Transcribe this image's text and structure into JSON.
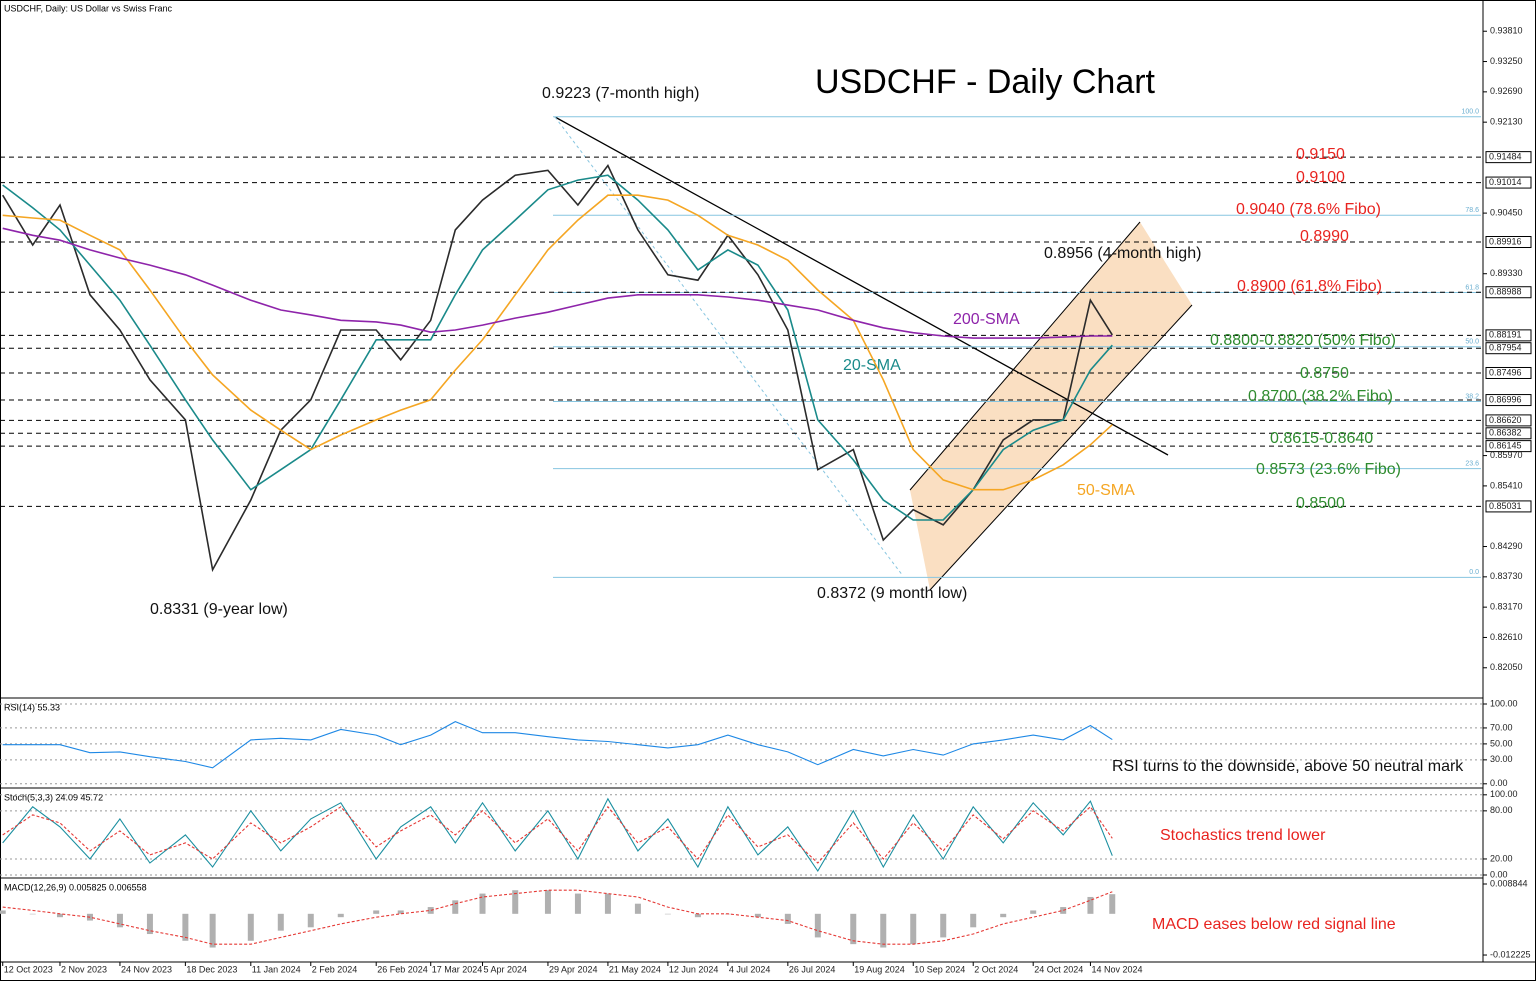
{
  "chart_data": [
    {
      "type": "line",
      "title": "USDCHF - Daily Chart",
      "subtitle": "USDCHF, Daily:  US Dollar vs Swiss Franc",
      "x": [
        "2023-10-12",
        "2023-10-23",
        "2023-11-02",
        "2023-11-13",
        "2023-11-24",
        "2023-12-05",
        "2023-12-18",
        "2023-12-28",
        "2024-01-11",
        "2024-01-22",
        "2024-02-02",
        "2024-02-13",
        "2024-02-26",
        "2024-03-06",
        "2024-03-17",
        "2024-03-26",
        "2024-04-05",
        "2024-04-17",
        "2024-04-29",
        "2024-05-10",
        "2024-05-21",
        "2024-06-01",
        "2024-06-12",
        "2024-06-23",
        "2024-07-04",
        "2024-07-15",
        "2024-07-26",
        "2024-08-06",
        "2024-08-19",
        "2024-08-30",
        "2024-09-10",
        "2024-09-21",
        "2024-10-02",
        "2024-10-13",
        "2024-10-24",
        "2024-11-04",
        "2024-11-14",
        "2024-11-22"
      ],
      "xlim": [
        "2023-10-11",
        "2025-04-07"
      ],
      "xticks": [
        {
          "value": "2023-10-12",
          "label": "12 Oct 2023"
        },
        {
          "value": "2023-11-02",
          "label": "2 Nov 2023"
        },
        {
          "value": "2023-11-24",
          "label": "24 Nov 2023"
        },
        {
          "value": "2023-12-18",
          "label": "18 Dec 2023"
        },
        {
          "value": "2024-01-11",
          "label": "11 Jan 2024"
        },
        {
          "value": "2024-02-02",
          "label": "2 Feb 2024"
        },
        {
          "value": "2024-02-26",
          "label": "26 Feb 2024"
        },
        {
          "value": "2024-03-17",
          "label": "17 Mar 2024"
        },
        {
          "value": "2024-04-05",
          "label": "5 Apr 2024"
        },
        {
          "value": "2024-04-29",
          "label": "29 Apr 2024"
        },
        {
          "value": "2024-05-21",
          "label": "21 May 2024"
        },
        {
          "value": "2024-06-12",
          "label": "12 Jun 2024"
        },
        {
          "value": "2024-07-04",
          "label": "4 Jul 2024"
        },
        {
          "value": "2024-07-26",
          "label": "26 Jul 2024"
        },
        {
          "value": "2024-08-19",
          "label": "19 Aug 2024"
        },
        {
          "value": "2024-09-10",
          "label": "10 Sep 2024"
        },
        {
          "value": "2024-10-02",
          "label": "2 Oct 2024"
        },
        {
          "value": "2024-10-24",
          "label": "24 Oct 2024"
        },
        {
          "value": "2024-11-14",
          "label": "14 Nov 2024"
        }
      ],
      "ylim": [
        0.8151,
        0.9435
      ],
      "yticks": [
        {
          "value": 0.9381,
          "label": "0.93810"
        },
        {
          "value": 0.9325,
          "label": "0.93250"
        },
        {
          "value": 0.9269,
          "label": "0.92690"
        },
        {
          "value": 0.9213,
          "label": "0.92130"
        },
        {
          "value": 0.9045,
          "label": "0.90450"
        },
        {
          "value": 0.8933,
          "label": "0.89330"
        },
        {
          "value": 0.8597,
          "label": "0.85970"
        },
        {
          "value": 0.8541,
          "label": "0.85410"
        },
        {
          "value": 0.8429,
          "label": "0.84290"
        },
        {
          "value": 0.8373,
          "label": "0.83730"
        },
        {
          "value": 0.8317,
          "label": "0.83170"
        },
        {
          "value": 0.8261,
          "label": "0.82610"
        },
        {
          "value": 0.8205,
          "label": "0.82050"
        }
      ],
      "levels": [
        {
          "value": 0.91484,
          "label": "0.91484"
        },
        {
          "value": 0.91014,
          "label": "0.91014"
        },
        {
          "value": 0.89916,
          "label": "0.89916"
        },
        {
          "value": 0.88988,
          "label": "0.88988"
        },
        {
          "value": 0.88191,
          "label": "0.88191"
        },
        {
          "value": 0.87954,
          "label": "0.87954"
        },
        {
          "value": 0.87496,
          "label": "0.87496"
        },
        {
          "value": 0.86996,
          "label": "0.86996"
        },
        {
          "value": 0.8662,
          "label": "0.86620"
        },
        {
          "value": 0.86382,
          "label": "0.86382"
        },
        {
          "value": 0.86145,
          "label": "0.86145"
        },
        {
          "value": 0.85031,
          "label": "0.85031"
        }
      ],
      "fibo": [
        {
          "value": 0.9223,
          "label": "100.0"
        },
        {
          "value": 0.90411,
          "label": "78.6"
        },
        {
          "value": 0.88983,
          "label": "61.8"
        },
        {
          "value": 0.8798,
          "label": "50.0"
        },
        {
          "value": 0.8697,
          "label": "38.2"
        },
        {
          "value": 0.8573,
          "label": "23.6"
        },
        {
          "value": 0.8372,
          "label": "0.0"
        }
      ],
      "series": [
        {
          "color": "#2b2b2b",
          "values": [
            0.9078,
            0.8986,
            0.906,
            0.8894,
            0.8829,
            0.8737,
            0.8663,
            0.8386,
            0.8515,
            0.8644,
            0.87,
            0.8829,
            0.8829,
            0.8774,
            0.8847,
            0.9014,
            0.9069,
            0.9115,
            0.9124,
            0.906,
            0.9133,
            0.9014,
            0.8931,
            0.8921,
            0.9004,
            0.8931,
            0.8829,
            0.8571,
            0.8608,
            0.8441,
            0.8497,
            0.8469,
            0.8534,
            0.8626,
            0.8663,
            0.8663,
            0.8884,
            0.882
          ]
        },
        {
          "name": "20-SMA",
          "color": "#1a8a8a",
          "values": [
            0.9097,
            0.9055,
            0.9014,
            0.8949,
            0.8884,
            0.8801,
            0.87,
            0.8626,
            0.8534,
            0.8571,
            0.8608,
            0.87,
            0.8811,
            0.8811,
            0.8811,
            0.8894,
            0.8977,
            0.9032,
            0.9088,
            0.9106,
            0.9115,
            0.9069,
            0.9014,
            0.894,
            0.8977,
            0.8949,
            0.8866,
            0.8663,
            0.8589,
            0.8515,
            0.8478,
            0.8478,
            0.8534,
            0.8608,
            0.8644,
            0.8663,
            0.8755,
            0.8801
          ]
        },
        {
          "name": "50-SMA",
          "color": "#f5a623",
          "values": [
            0.9041,
            0.9036,
            0.9032,
            0.9004,
            0.8977,
            0.8903,
            0.8811,
            0.8746,
            0.8681,
            0.8644,
            0.8608,
            0.8635,
            0.8663,
            0.8681,
            0.87,
            0.8755,
            0.8811,
            0.8894,
            0.8977,
            0.9032,
            0.9078,
            0.9078,
            0.9069,
            0.9041,
            0.9004,
            0.8986,
            0.8958,
            0.8903,
            0.8847,
            0.8737,
            0.8608,
            0.8552,
            0.8534,
            0.8534,
            0.8552,
            0.858,
            0.8617,
            0.8654
          ]
        },
        {
          "name": "200-SMA",
          "color": "#8e24aa",
          "values": [
            0.9017,
            0.9004,
            0.8995,
            0.8977,
            0.8962,
            0.8949,
            0.8931,
            0.8912,
            0.8884,
            0.8866,
            0.8857,
            0.8847,
            0.8844,
            0.8838,
            0.8825,
            0.8829,
            0.8838,
            0.8851,
            0.8862,
            0.8875,
            0.8888,
            0.8894,
            0.8894,
            0.8894,
            0.889,
            0.8884,
            0.8875,
            0.8866,
            0.8847,
            0.8833,
            0.8824,
            0.8818,
            0.8814,
            0.8814,
            0.8814,
            0.8816,
            0.8818,
            0.8818
          ]
        }
      ],
      "annotations": [
        {
          "text": "0.9223 (7-month high)",
          "color": "#111111"
        },
        {
          "text": "0.9150",
          "color": "#e8231f"
        },
        {
          "text": "0.9100",
          "color": "#e8231f"
        },
        {
          "text": "0.9040 (78.6% Fibo)",
          "color": "#e8231f"
        },
        {
          "text": "0.8990",
          "color": "#e8231f"
        },
        {
          "text": "0.8956 (4-month high)",
          "color": "#111111"
        },
        {
          "text": "0.8900 (61.8% Fibo)",
          "color": "#e8231f"
        },
        {
          "text": "0.8800-0.8820 (50% Fibo)",
          "color": "#2e8b2e"
        },
        {
          "text": "0.8750",
          "color": "#2e8b2e"
        },
        {
          "text": "0.8700 (38.2% Fibo)",
          "color": "#2e8b2e"
        },
        {
          "text": "0.8615-0.8640",
          "color": "#2e8b2e"
        },
        {
          "text": "0.8573 (23.6% Fibo)",
          "color": "#2e8b2e"
        },
        {
          "text": "0.8500",
          "color": "#2e8b2e"
        },
        {
          "text": "0.8372 (9 month low)",
          "color": "#111111"
        },
        {
          "text": "0.8331 (9-year low)",
          "color": "#111111"
        }
      ]
    },
    {
      "type": "line",
      "title": "RSI(14) 55.33",
      "ylim": [
        -4,
        105
      ],
      "grid": true,
      "yticks": [
        {
          "value": 100,
          "label": "100.00"
        },
        {
          "value": 70,
          "label": "70.00"
        },
        {
          "value": 50,
          "label": "50.00"
        },
        {
          "value": 30,
          "label": "30.00"
        },
        {
          "value": 0,
          "label": "0.00"
        }
      ],
      "series": [
        {
          "color": "#1e88e5",
          "values": [
            49,
            49,
            49,
            39,
            40,
            34,
            28,
            20,
            55,
            57,
            55,
            68,
            61,
            49,
            61,
            78,
            64,
            64,
            59,
            55,
            53,
            49,
            45,
            49,
            61,
            49,
            40,
            24,
            43,
            35,
            43,
            36,
            50,
            55,
            61,
            55,
            73,
            55.33
          ]
        }
      ],
      "annotations": [
        {
          "text": "RSI turns to the downside, above 50 neutral mark",
          "color": "#111111"
        }
      ]
    },
    {
      "type": "line",
      "title": "Stoch(5,3,3) 24.09 45.72",
      "ylim": [
        -2.5,
        106
      ],
      "grid": true,
      "yticks": [
        {
          "value": 100,
          "label": "100.00"
        },
        {
          "value": 80,
          "label": "80.00"
        },
        {
          "value": 20,
          "label": "20.00"
        },
        {
          "value": 0,
          "label": "0.00"
        }
      ],
      "series": [
        {
          "color": "#1b8fa0",
          "values": [
            40,
            85,
            60,
            20,
            70,
            15,
            50,
            10,
            80,
            30,
            70,
            90,
            20,
            60,
            85,
            40,
            90,
            30,
            80,
            20,
            95,
            30,
            70,
            10,
            85,
            25,
            60,
            5,
            80,
            10,
            75,
            20,
            85,
            40,
            90,
            50,
            92,
            24.09
          ]
        },
        {
          "color": "#e53935",
          "dashed": true,
          "values": [
            50,
            75,
            65,
            30,
            55,
            25,
            40,
            20,
            65,
            40,
            60,
            85,
            35,
            55,
            75,
            50,
            80,
            40,
            70,
            30,
            85,
            40,
            60,
            20,
            75,
            35,
            50,
            15,
            65,
            20,
            65,
            30,
            75,
            45,
            80,
            55,
            85,
            45.72
          ]
        }
      ],
      "annotations": [
        {
          "text": "Stochastics trend lower",
          "color": "#e8231f"
        }
      ]
    },
    {
      "type": "bar",
      "title": "MACD(12,26,9) 0.005825 0.006558",
      "ylim": [
        -0.0137,
        0.01003
      ],
      "yticks": [
        0.008844,
        -0.012225
      ],
      "series": [
        {
          "color": "#b0b0b0",
          "values": [
            0.001,
            0,
            -0.001,
            -0.002,
            -0.004,
            -0.006,
            -0.008,
            -0.01,
            -0.008,
            -0.005,
            -0.004,
            -0.001,
            0.001,
            0.001,
            0.002,
            0.004,
            0.006,
            0.007,
            0.007,
            0.006,
            0.006,
            0.003,
            0,
            -0.001,
            0,
            -0.001,
            -0.003,
            -0.007,
            -0.009,
            -0.01,
            -0.009,
            -0.007,
            -0.004,
            -0.001,
            0.001,
            0.002,
            0.005,
            0.005825
          ]
        },
        {
          "color": "#e53935",
          "type": "line",
          "dashed": true,
          "values": [
            0.002,
            0.001,
            0,
            -0.001,
            -0.003,
            -0.005,
            -0.007,
            -0.009,
            -0.009,
            -0.007,
            -0.005,
            -0.003,
            -0.001,
            0,
            0.001,
            0.003,
            0.005,
            0.006,
            0.007,
            0.007,
            0.006,
            0.005,
            0.002,
            0,
            0,
            -0.001,
            -0.002,
            -0.005,
            -0.008,
            -0.009,
            -0.009,
            -0.008,
            -0.006,
            -0.003,
            -0.001,
            0.001,
            0.004,
            0.006558
          ]
        }
      ],
      "annotations": [
        {
          "text": "MACD eases below red signal line",
          "color": "#e8231f"
        }
      ]
    }
  ]
}
